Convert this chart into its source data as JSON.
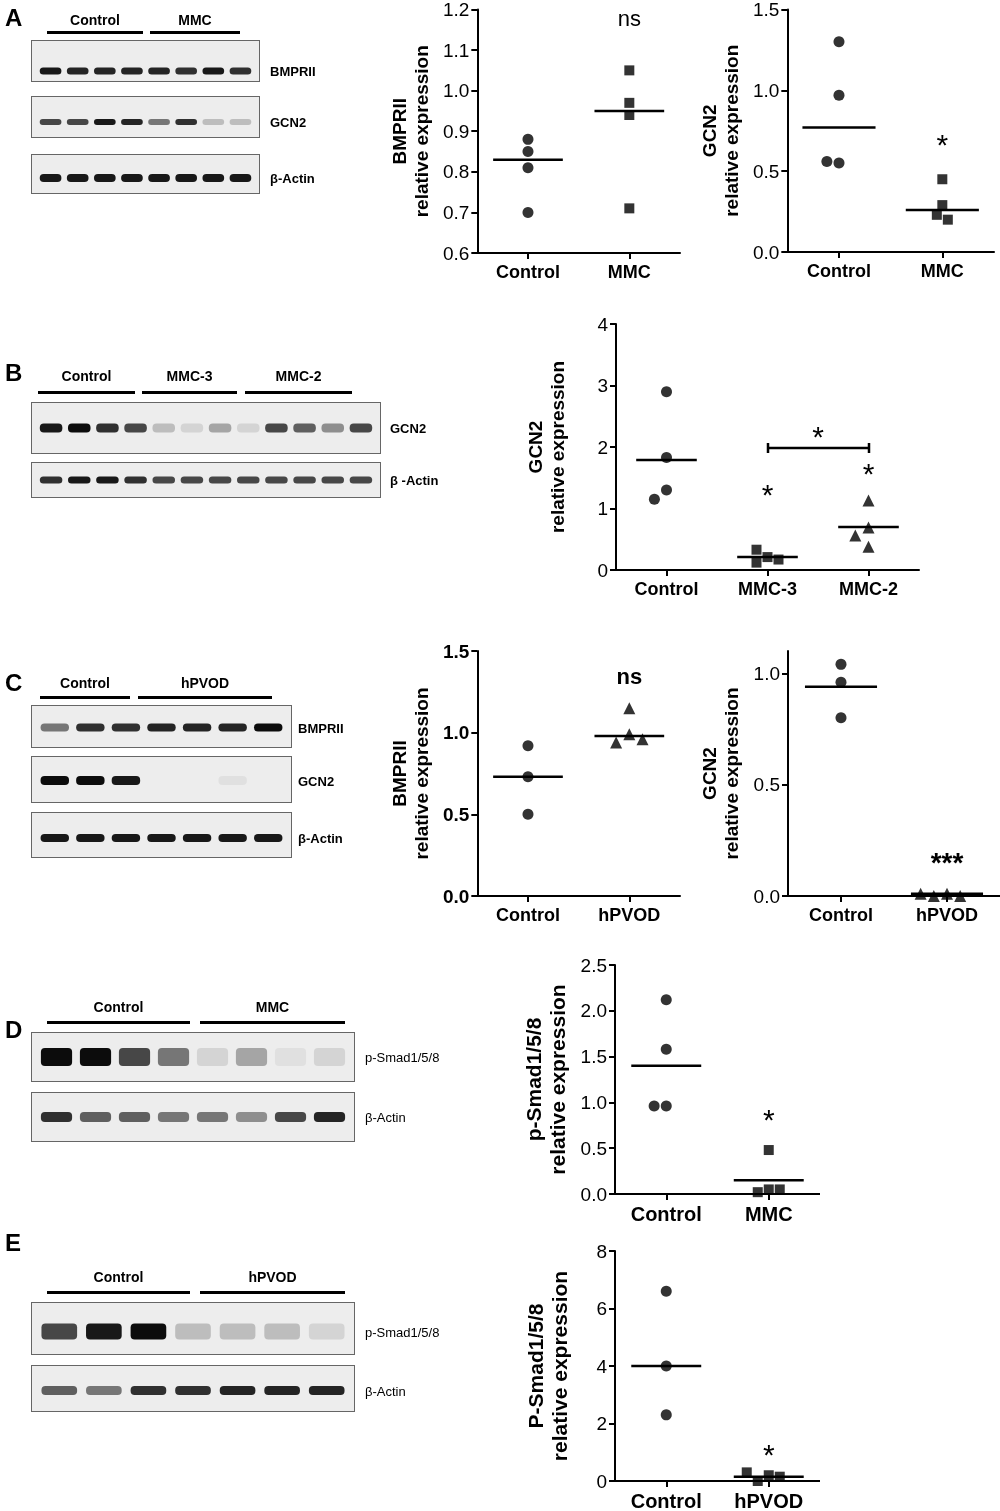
{
  "chart_data": [
    {
      "type": "other",
      "title": "A",
      "annotations": [
        "Control",
        "MMC",
        "BMPRII",
        "GCN2",
        "β-Actin"
      ]
    },
    {
      "type": "scatter",
      "categories": [
        "Control",
        "MMC"
      ],
      "ylabel": "BMPRII\nrelative expression",
      "ylim": [
        0.6,
        1.2
      ],
      "yticks": [
        0.6,
        0.7,
        0.8,
        0.9,
        {
          "value": 1,
          "label": "1.0"
        },
        1.1,
        1.2
      ],
      "series": [
        {
          "x": [
            "Control",
            "Control",
            "Control",
            "Control"
          ],
          "values": [
            0.85,
            0.88,
            0.81,
            0.7
          ],
          "marker": "circle",
          "color": "#000000"
        },
        {
          "x": [
            "MMC",
            "MMC",
            "MMC",
            "MMC"
          ],
          "values": [
            1.05,
            0.97,
            0.94,
            0.71
          ],
          "marker": "square",
          "color": "#000000"
        }
      ],
      "ref_lines": [
        {
          "axis": "y",
          "value": 0.83,
          "color": "#000000"
        },
        {
          "axis": "y",
          "value": 0.95,
          "color": "#000000"
        }
      ],
      "annotations": [
        "ns"
      ]
    },
    {
      "type": "scatter",
      "categories": [
        "Control",
        "MMC"
      ],
      "ylabel": "GCN2\nrelative expression",
      "ylim": [
        0,
        1.5
      ],
      "yticks": [
        {
          "value": 0,
          "label": "0.0"
        },
        0.5,
        {
          "value": 1,
          "label": "1.0"
        },
        1.5
      ],
      "series": [
        {
          "x": [
            "Control",
            "Control",
            "Control",
            "Control"
          ],
          "values": [
            1.3,
            0.97,
            0.55,
            0.56
          ],
          "marker": "circle",
          "color": "#000000"
        },
        {
          "x": [
            "MMC",
            "MMC",
            "MMC",
            "MMC"
          ],
          "values": [
            0.45,
            0.29,
            0.23,
            0.2
          ],
          "marker": "square",
          "color": "#000000"
        }
      ],
      "ref_lines": [
        {
          "axis": "y",
          "value": 0.77,
          "color": "#000000"
        },
        {
          "axis": "y",
          "value": 0.26,
          "color": "#000000"
        }
      ],
      "annotations": [
        "*"
      ]
    },
    {
      "type": "other",
      "title": "B",
      "annotations": [
        "Control",
        "MMC-3",
        "MMC-2",
        "GCN2",
        "β -Actin"
      ]
    },
    {
      "type": "scatter",
      "categories": [
        "Control",
        "MMC-3",
        "MMC-2"
      ],
      "ylabel": "GCN2\nrelative expression",
      "ylim": [
        0,
        4
      ],
      "yticks": [
        0,
        1,
        2,
        3,
        4
      ],
      "series": [
        {
          "x": [
            "Control",
            "Control",
            "Control",
            "Control"
          ],
          "values": [
            2.9,
            1.83,
            1.3,
            1.15
          ],
          "marker": "circle",
          "color": "#000000"
        },
        {
          "x": [
            "MMC-3",
            "MMC-3",
            "MMC-3",
            "MMC-3"
          ],
          "values": [
            0.21,
            0.12,
            0.17,
            0.33
          ],
          "marker": "square",
          "color": "#000000"
        },
        {
          "x": [
            "MMC-2",
            "MMC-2",
            "MMC-2",
            "MMC-2"
          ],
          "values": [
            1.13,
            0.69,
            0.56,
            0.38
          ],
          "marker": "triangle",
          "color": "#000000"
        }
      ],
      "ref_lines": [
        {
          "axis": "y",
          "value": 1.79,
          "color": "#000000"
        },
        {
          "axis": "y",
          "value": 0.21,
          "color": "#000000"
        },
        {
          "axis": "y",
          "value": 0.7,
          "color": "#000000"
        }
      ],
      "annotations": [
        "*",
        "*",
        "*"
      ]
    },
    {
      "type": "other",
      "title": "C",
      "annotations": [
        "Control",
        "hPVOD",
        "BMPRII",
        "GCN2",
        "β-Actin"
      ]
    },
    {
      "type": "scatter",
      "categories": [
        "Control",
        "hPVOD"
      ],
      "ylabel": "BMPRII\nrelative expression",
      "ylim": [
        0,
        1.5
      ],
      "yticks": [
        {
          "value": 0,
          "label": "0.0"
        },
        0.5,
        {
          "value": 1,
          "label": "1.0"
        },
        1.5
      ],
      "series": [
        {
          "x": [
            "Control",
            "Control",
            "Control"
          ],
          "values": [
            0.92,
            0.73,
            0.5
          ],
          "marker": "circle",
          "color": "#000000"
        },
        {
          "x": [
            "hPVOD",
            "hPVOD",
            "hPVOD",
            "hPVOD"
          ],
          "values": [
            1.15,
            0.99,
            0.94,
            0.96
          ],
          "marker": "triangle",
          "color": "#000000"
        }
      ],
      "ref_lines": [
        {
          "axis": "y",
          "value": 0.73,
          "color": "#000000"
        },
        {
          "axis": "y",
          "value": 0.98,
          "color": "#000000"
        }
      ],
      "annotations": [
        "ns"
      ]
    },
    {
      "type": "scatter",
      "categories": [
        "Control",
        "hPVOD"
      ],
      "ylabel": "GCN2\nrelative expression",
      "ylim": [
        0,
        1.1
      ],
      "yticks": [
        {
          "value": 0,
          "label": "0.0"
        },
        0.5,
        {
          "value": 1,
          "label": "1.0"
        }
      ],
      "series": [
        {
          "x": [
            "Control",
            "Control",
            "Control"
          ],
          "values": [
            1.04,
            0.96,
            0.8
          ],
          "marker": "circle",
          "color": "#000000"
        },
        {
          "x": [
            "hPVOD",
            "hPVOD",
            "hPVOD",
            "hPVOD"
          ],
          "values": [
            0.01,
            0,
            0,
            0.01
          ],
          "marker": "triangle",
          "color": "#000000"
        }
      ],
      "ref_lines": [
        {
          "axis": "y",
          "value": 0.94,
          "color": "#000000"
        },
        {
          "axis": "y",
          "value": 0.01,
          "color": "#000000"
        }
      ],
      "annotations": [
        "***"
      ]
    },
    {
      "type": "other",
      "title": "D",
      "annotations": [
        "Control",
        "MMC",
        "p-Smad1/5/8",
        "β-Actin"
      ]
    },
    {
      "type": "scatter",
      "categories": [
        "Control",
        "MMC"
      ],
      "ylabel": "p-Smad1/5/8\nrelative expression",
      "ylim": [
        0,
        2.5
      ],
      "yticks": [
        {
          "value": 0,
          "label": "0.0"
        },
        0.5,
        {
          "value": 1,
          "label": "1.0"
        },
        1.5,
        {
          "value": 2,
          "label": "2.0"
        },
        2.5
      ],
      "series": [
        {
          "x": [
            "Control",
            "Control",
            "Control",
            "Control"
          ],
          "values": [
            2.12,
            1.58,
            0.96,
            0.96
          ],
          "marker": "circle",
          "color": "#000000"
        },
        {
          "x": [
            "MMC",
            "MMC",
            "MMC",
            "MMC"
          ],
          "values": [
            0.48,
            0.05,
            0.02,
            0.05
          ],
          "marker": "square",
          "color": "#000000"
        }
      ],
      "ref_lines": [
        {
          "axis": "y",
          "value": 1.4,
          "color": "#000000"
        },
        {
          "axis": "y",
          "value": 0.15,
          "color": "#000000"
        }
      ],
      "annotations": [
        "*"
      ]
    },
    {
      "type": "other",
      "title": "E",
      "annotations": [
        "Control",
        "hPVOD",
        "p-Smad1/5/8",
        "β-Actin"
      ]
    },
    {
      "type": "scatter",
      "categories": [
        "Control",
        "hPVOD"
      ],
      "ylabel": "P-Smad1/5/8\nrelative expression",
      "ylim": [
        0,
        8
      ],
      "yticks": [
        0,
        2,
        4,
        6,
        8
      ],
      "series": [
        {
          "x": [
            "Control",
            "Control",
            "Control"
          ],
          "values": [
            6.6,
            4.0,
            2.3
          ],
          "marker": "circle",
          "color": "#000000"
        },
        {
          "x": [
            "hPVOD",
            "hPVOD",
            "hPVOD",
            "hPVOD"
          ],
          "values": [
            0.2,
            0,
            0.15,
            0.3
          ],
          "marker": "square",
          "color": "#000000"
        }
      ],
      "ref_lines": [
        {
          "axis": "y",
          "value": 4.0,
          "color": "#000000"
        },
        {
          "axis": "y",
          "value": 0.15,
          "color": "#000000"
        }
      ],
      "annotations": [
        "*"
      ]
    }
  ]
}
